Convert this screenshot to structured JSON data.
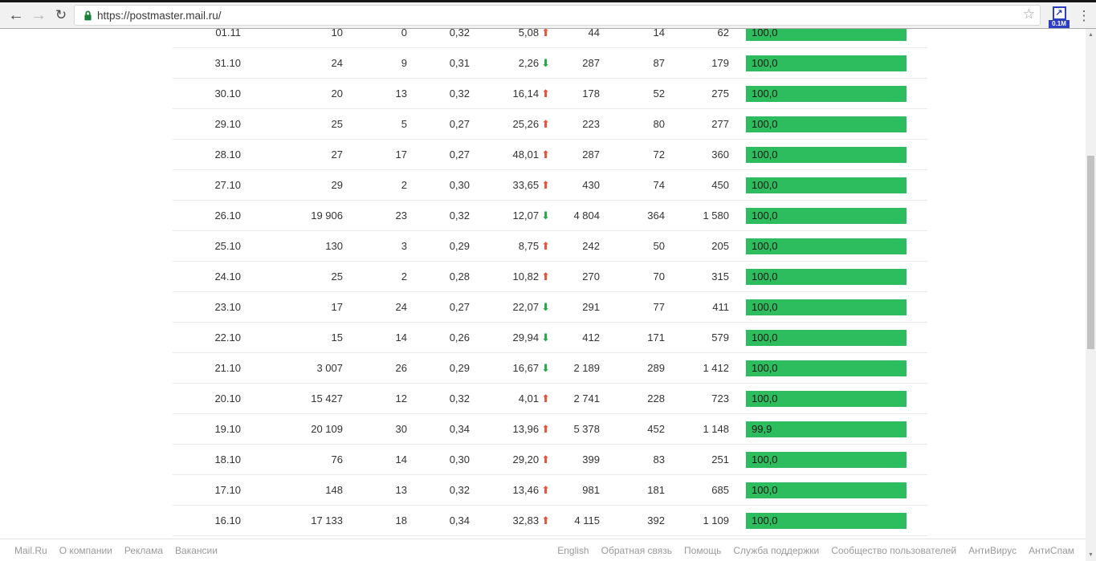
{
  "browser": {
    "url": "https://postmaster.mail.ru/",
    "extension_badge": "0.1M"
  },
  "icons": {
    "back": "←",
    "forward": "→",
    "reload": "↻",
    "star": "☆",
    "extension_arrow": "↗",
    "menu": "⋮",
    "trend_up": "⬆",
    "trend_down": "⬇",
    "scroll_up": "▲",
    "scroll_down": "▼"
  },
  "colors": {
    "bar_green": "#2ebd5e",
    "trend_up_red": "#e2543b",
    "trend_down_green": "#27a84d",
    "extension_blue": "#2f3dc3",
    "lock_green": "#188038"
  },
  "table": {
    "rows": [
      {
        "date": "01.11",
        "v1": "10",
        "v2": "0",
        "v3": "0,32",
        "delta": "5,08",
        "trend": "up",
        "v4": "44",
        "v5": "14",
        "v6": "62",
        "bar_label": "100,0",
        "bar_value": 100
      },
      {
        "date": "31.10",
        "v1": "24",
        "v2": "9",
        "v3": "0,31",
        "delta": "2,26",
        "trend": "down",
        "v4": "287",
        "v5": "87",
        "v6": "179",
        "bar_label": "100,0",
        "bar_value": 100
      },
      {
        "date": "30.10",
        "v1": "20",
        "v2": "13",
        "v3": "0,32",
        "delta": "16,14",
        "trend": "up",
        "v4": "178",
        "v5": "52",
        "v6": "275",
        "bar_label": "100,0",
        "bar_value": 100
      },
      {
        "date": "29.10",
        "v1": "25",
        "v2": "5",
        "v3": "0,27",
        "delta": "25,26",
        "trend": "up",
        "v4": "223",
        "v5": "80",
        "v6": "277",
        "bar_label": "100,0",
        "bar_value": 100
      },
      {
        "date": "28.10",
        "v1": "27",
        "v2": "17",
        "v3": "0,27",
        "delta": "48,01",
        "trend": "up",
        "v4": "287",
        "v5": "72",
        "v6": "360",
        "bar_label": "100,0",
        "bar_value": 100
      },
      {
        "date": "27.10",
        "v1": "29",
        "v2": "2",
        "v3": "0,30",
        "delta": "33,65",
        "trend": "up",
        "v4": "430",
        "v5": "74",
        "v6": "450",
        "bar_label": "100,0",
        "bar_value": 100
      },
      {
        "date": "26.10",
        "v1": "19 906",
        "v2": "23",
        "v3": "0,32",
        "delta": "12,07",
        "trend": "down",
        "v4": "4 804",
        "v5": "364",
        "v6": "1 580",
        "bar_label": "100,0",
        "bar_value": 100
      },
      {
        "date": "25.10",
        "v1": "130",
        "v2": "3",
        "v3": "0,29",
        "delta": "8,75",
        "trend": "up",
        "v4": "242",
        "v5": "50",
        "v6": "205",
        "bar_label": "100,0",
        "bar_value": 100
      },
      {
        "date": "24.10",
        "v1": "25",
        "v2": "2",
        "v3": "0,28",
        "delta": "10,82",
        "trend": "up",
        "v4": "270",
        "v5": "70",
        "v6": "315",
        "bar_label": "100,0",
        "bar_value": 100
      },
      {
        "date": "23.10",
        "v1": "17",
        "v2": "24",
        "v3": "0,27",
        "delta": "22,07",
        "trend": "down",
        "v4": "291",
        "v5": "77",
        "v6": "411",
        "bar_label": "100,0",
        "bar_value": 100
      },
      {
        "date": "22.10",
        "v1": "15",
        "v2": "14",
        "v3": "0,26",
        "delta": "29,94",
        "trend": "down",
        "v4": "412",
        "v5": "171",
        "v6": "579",
        "bar_label": "100,0",
        "bar_value": 100
      },
      {
        "date": "21.10",
        "v1": "3 007",
        "v2": "26",
        "v3": "0,29",
        "delta": "16,67",
        "trend": "down",
        "v4": "2 189",
        "v5": "289",
        "v6": "1 412",
        "bar_label": "100,0",
        "bar_value": 100
      },
      {
        "date": "20.10",
        "v1": "15 427",
        "v2": "12",
        "v3": "0,32",
        "delta": "4,01",
        "trend": "up",
        "v4": "2 741",
        "v5": "228",
        "v6": "723",
        "bar_label": "100,0",
        "bar_value": 100
      },
      {
        "date": "19.10",
        "v1": "20 109",
        "v2": "30",
        "v3": "0,34",
        "delta": "13,96",
        "trend": "up",
        "v4": "5 378",
        "v5": "452",
        "v6": "1 148",
        "bar_label": "99,9",
        "bar_value": 99.9
      },
      {
        "date": "18.10",
        "v1": "76",
        "v2": "14",
        "v3": "0,30",
        "delta": "29,20",
        "trend": "up",
        "v4": "399",
        "v5": "83",
        "v6": "251",
        "bar_label": "100,0",
        "bar_value": 100
      },
      {
        "date": "17.10",
        "v1": "148",
        "v2": "13",
        "v3": "0,32",
        "delta": "13,46",
        "trend": "up",
        "v4": "981",
        "v5": "181",
        "v6": "685",
        "bar_label": "100,0",
        "bar_value": 100
      },
      {
        "date": "16.10",
        "v1": "17 133",
        "v2": "18",
        "v3": "0,34",
        "delta": "32,83",
        "trend": "up",
        "v4": "4 115",
        "v5": "392",
        "v6": "1 109",
        "bar_label": "100,0",
        "bar_value": 100
      }
    ]
  },
  "footer": {
    "left_links": [
      "Mail.Ru",
      "О компании",
      "Реклама",
      "Вакансии"
    ],
    "right_links": [
      "English",
      "Обратная связь",
      "Помощь",
      "Служба поддержки",
      "Сообщество пользователей",
      "АнтиВирус",
      "АнтиСпам"
    ]
  }
}
